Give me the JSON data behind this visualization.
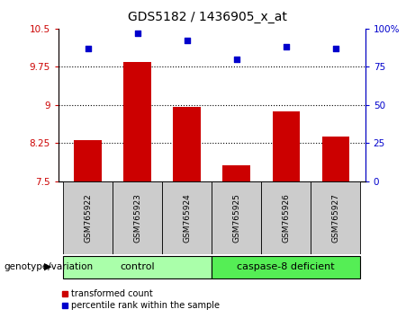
{
  "title": "GDS5182 / 1436905_x_at",
  "samples": [
    "GSM765922",
    "GSM765923",
    "GSM765924",
    "GSM765925",
    "GSM765926",
    "GSM765927"
  ],
  "red_bars": [
    8.3,
    9.85,
    8.97,
    7.82,
    8.87,
    8.38
  ],
  "blue_dots": [
    87,
    97,
    92,
    80,
    88,
    87
  ],
  "ylim_left": [
    7.5,
    10.5
  ],
  "ylim_right": [
    0,
    100
  ],
  "yticks_left": [
    7.5,
    8.25,
    9.0,
    9.75,
    10.5
  ],
  "ytick_labels_left": [
    "7.5",
    "8.25",
    "9",
    "9.75",
    "10.5"
  ],
  "yticks_right": [
    0,
    25,
    50,
    75,
    100
  ],
  "ytick_labels_right": [
    "0",
    "25",
    "50",
    "75",
    "100%"
  ],
  "hlines": [
    8.25,
    9.0,
    9.75
  ],
  "bar_color": "#cc0000",
  "dot_color": "#0000cc",
  "bar_baseline": 7.5,
  "group_labels": [
    "control",
    "caspase-8 deficient"
  ],
  "group_ranges": [
    [
      0,
      3
    ],
    [
      3,
      6
    ]
  ],
  "group_color_control": "#aaffaa",
  "group_color_deficient": "#55ee55",
  "genotype_label": "genotype/variation",
  "legend_red": "transformed count",
  "legend_blue": "percentile rank within the sample",
  "left_axis_color": "#cc0000",
  "right_axis_color": "#0000cc",
  "bg_plot": "#ffffff",
  "bg_xtick": "#cccccc",
  "title_fontsize": 10,
  "tick_fontsize": 7.5,
  "sample_fontsize": 6.5,
  "group_fontsize": 8,
  "legend_fontsize": 7
}
